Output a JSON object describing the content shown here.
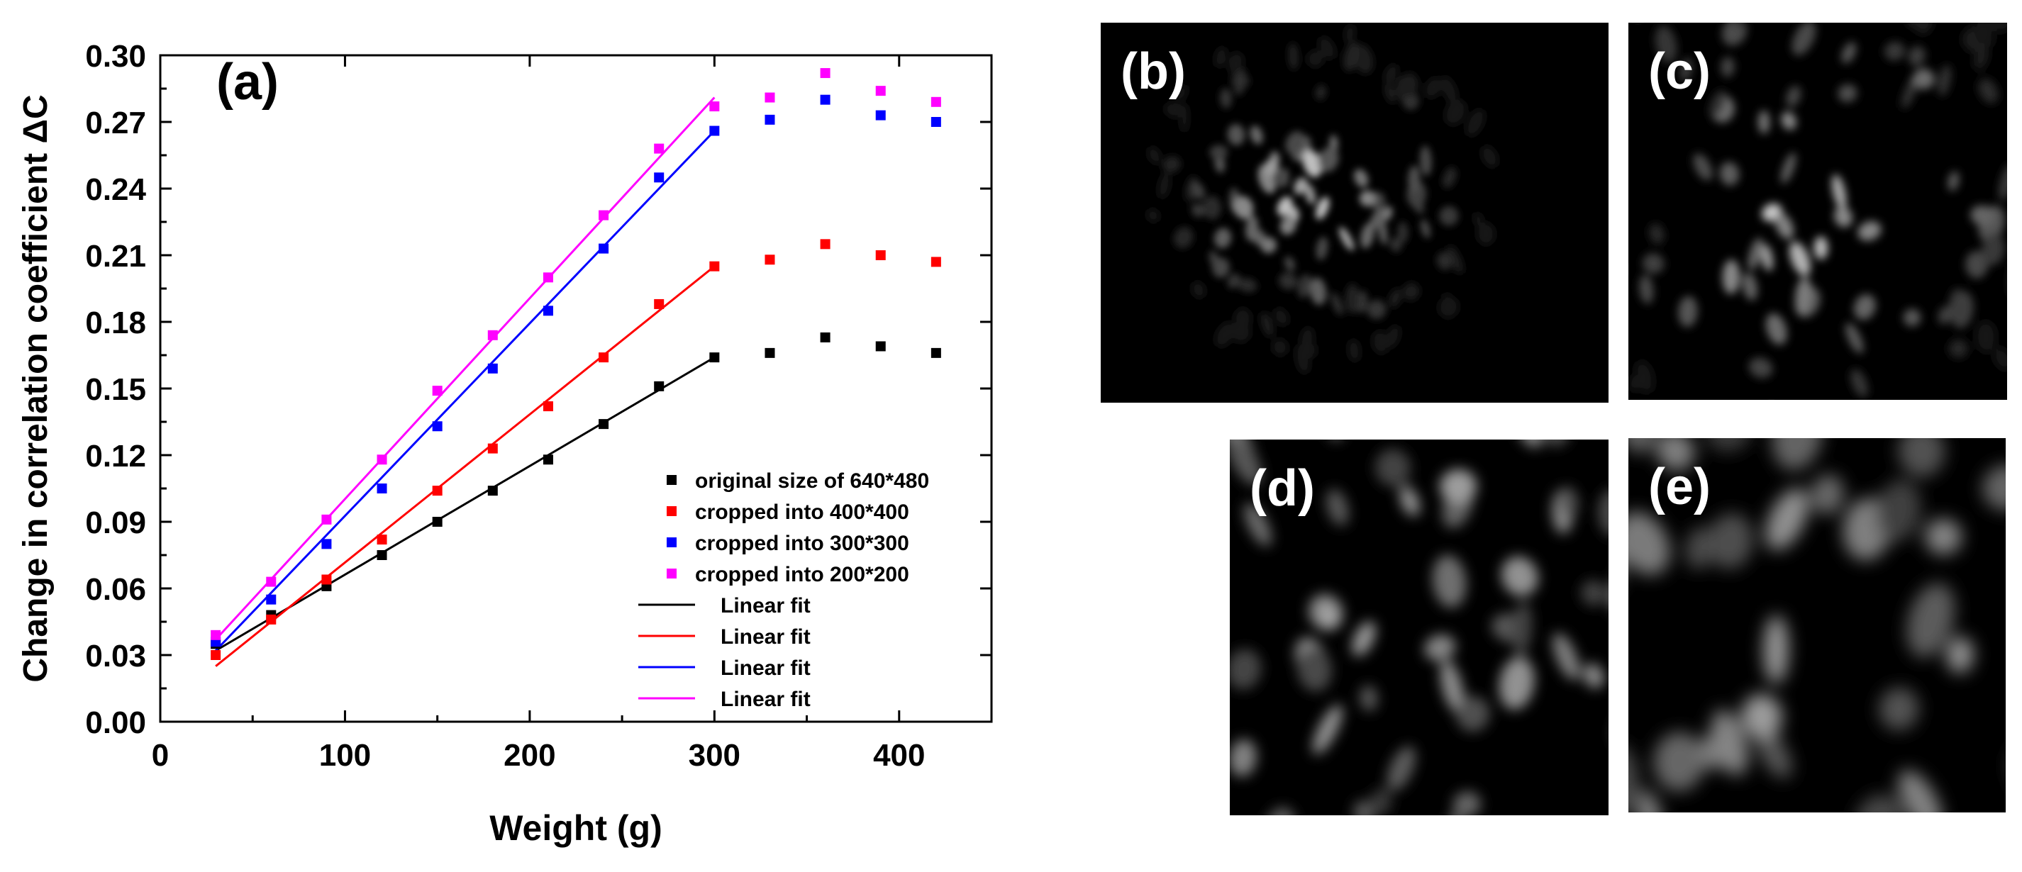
{
  "chart_data": {
    "type": "scatter",
    "panel_label": "(a)",
    "xlabel": "Weight (g)",
    "ylabel": "Change in correlation coefficient ΔC",
    "xlim": [
      0,
      450
    ],
    "ylim": [
      0,
      0.3
    ],
    "x_ticks": [
      "0",
      "100",
      "200",
      "300",
      "400"
    ],
    "y_ticks": [
      "0.00",
      "0.03",
      "0.06",
      "0.09",
      "0.12",
      "0.15",
      "0.18",
      "0.21",
      "0.24",
      "0.27",
      "0.30"
    ],
    "x": [
      30,
      60,
      90,
      120,
      150,
      180,
      210,
      240,
      270,
      300,
      330,
      360,
      390,
      420
    ],
    "series": [
      {
        "name": "original size of 640*480",
        "color": "#000000",
        "values": [
          0.035,
          0.048,
          0.061,
          0.075,
          0.09,
          0.104,
          0.118,
          0.134,
          0.151,
          0.164,
          0.166,
          0.173,
          0.169,
          0.166
        ],
        "fit": {
          "label": "Linear fit",
          "x": [
            30,
            300
          ],
          "y": [
            0.032,
            0.164
          ]
        }
      },
      {
        "name": "cropped into 400*400",
        "color": "#ff0000",
        "values": [
          0.03,
          0.046,
          0.064,
          0.082,
          0.104,
          0.123,
          0.142,
          0.164,
          0.188,
          0.205,
          0.208,
          0.215,
          0.21,
          0.207
        ],
        "fit": {
          "label": "Linear fit",
          "x": [
            30,
            300
          ],
          "y": [
            0.025,
            0.205
          ]
        }
      },
      {
        "name": "cropped into 300*300",
        "color": "#0000ff",
        "values": [
          0.036,
          0.055,
          0.08,
          0.105,
          0.133,
          0.159,
          0.185,
          0.213,
          0.245,
          0.266,
          0.271,
          0.28,
          0.273,
          0.27
        ],
        "fit": {
          "label": "Linear fit",
          "x": [
            30,
            300
          ],
          "y": [
            0.032,
            0.266
          ]
        }
      },
      {
        "name": "cropped into 200*200",
        "color": "#ff00ff",
        "values": [
          0.039,
          0.063,
          0.091,
          0.118,
          0.149,
          0.174,
          0.2,
          0.228,
          0.258,
          0.277,
          0.281,
          0.292,
          0.284,
          0.279
        ],
        "fit": {
          "label": "Linear fit",
          "x": [
            30,
            300
          ],
          "y": [
            0.037,
            0.281
          ]
        }
      }
    ],
    "legend_position": "bottom-right",
    "grid": false
  },
  "images": [
    {
      "label": "(b)"
    },
    {
      "label": "(c)"
    },
    {
      "label": "(d)"
    },
    {
      "label": "(e)"
    }
  ]
}
